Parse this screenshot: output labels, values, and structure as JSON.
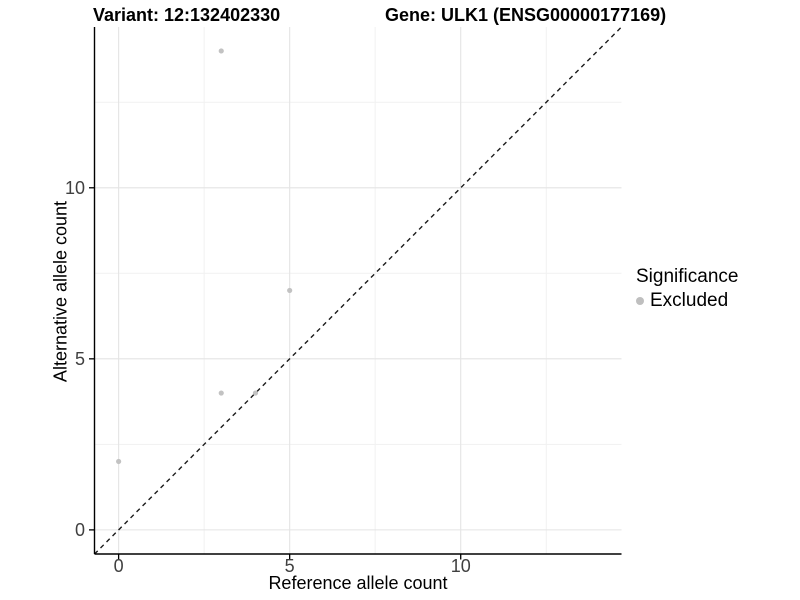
{
  "chart_data": {
    "type": "scatter",
    "title_left": "Variant: 12:132402330",
    "title_right": "Gene: ULK1 (ENSG00000177169)",
    "xlabel": "Reference allele count",
    "ylabel": "Alternative allele count",
    "axis_range": [
      -0.705,
      14.7
    ],
    "x_ticks": [
      0,
      5,
      10
    ],
    "y_ticks": [
      0,
      5,
      10
    ],
    "minor_ticks": [
      2.5,
      7.5,
      12.5
    ],
    "grid": "major+minor",
    "series": [
      {
        "name": "Excluded",
        "color": "#c2c2c2",
        "points": [
          [
            0,
            2
          ],
          [
            3,
            4
          ],
          [
            4,
            4
          ],
          [
            3,
            14
          ],
          [
            5,
            7
          ]
        ]
      }
    ],
    "reference_line": {
      "type": "identity",
      "style": "dashed",
      "color": "#1a1a1a"
    },
    "legend": {
      "title": "Significance",
      "position": "right",
      "items": [
        {
          "label": "Excluded",
          "color": "#bfbfbf"
        }
      ]
    },
    "colors": {
      "background": "#ffffff",
      "grid_major": "#e4e4e4",
      "grid_minor": "#f1f1f1",
      "axis_line": "#000000",
      "tick_text": "#404040"
    }
  }
}
